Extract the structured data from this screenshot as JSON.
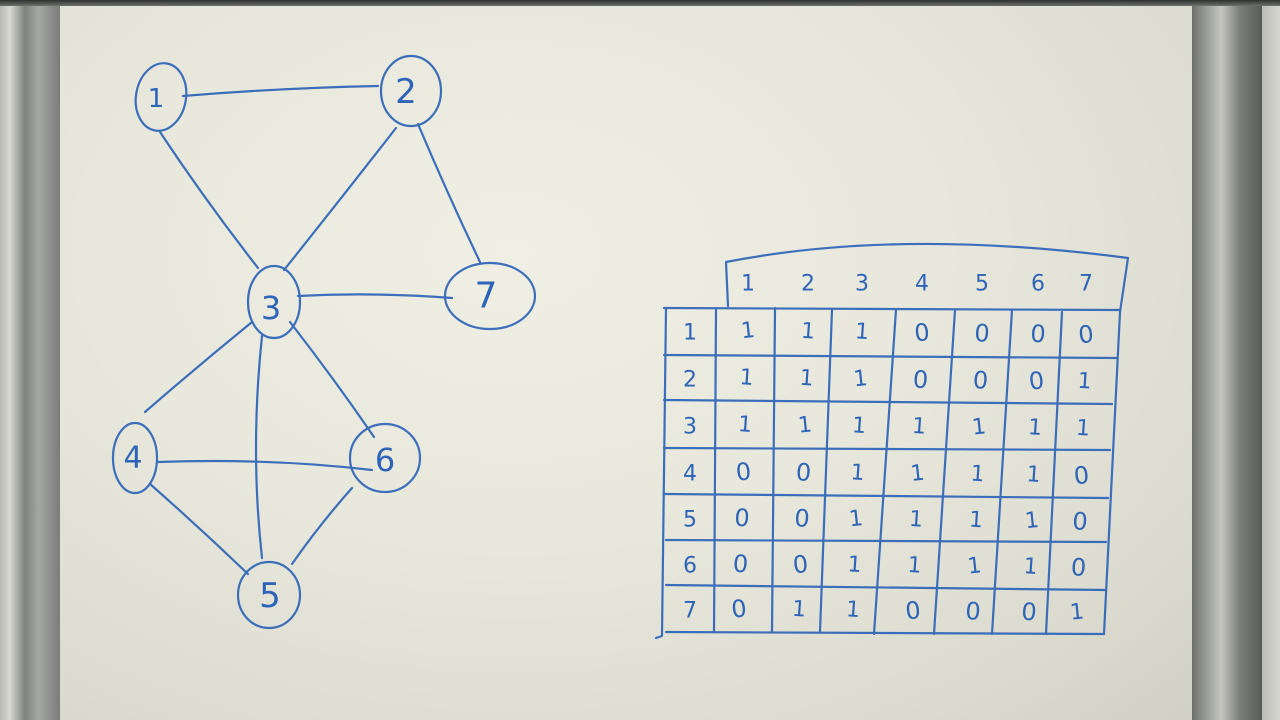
{
  "graph": {
    "nodes": [
      {
        "id": "n1",
        "label": "1"
      },
      {
        "id": "n2",
        "label": "2"
      },
      {
        "id": "n3",
        "label": "3"
      },
      {
        "id": "n4",
        "label": "4"
      },
      {
        "id": "n5",
        "label": "5"
      },
      {
        "id": "n6",
        "label": "6"
      },
      {
        "id": "n7",
        "label": "7"
      }
    ],
    "edges": [
      [
        "1",
        "2"
      ],
      [
        "1",
        "3"
      ],
      [
        "2",
        "3"
      ],
      [
        "2",
        "7"
      ],
      [
        "3",
        "7"
      ],
      [
        "3",
        "4"
      ],
      [
        "3",
        "5"
      ],
      [
        "3",
        "6"
      ],
      [
        "4",
        "6"
      ],
      [
        "4",
        "5"
      ],
      [
        "5",
        "6"
      ]
    ]
  },
  "matrix": {
    "col_headers": [
      "1",
      "2",
      "3",
      "4",
      "5",
      "6",
      "7"
    ],
    "row_headers": [
      "1",
      "2",
      "3",
      "4",
      "5",
      "6",
      "7"
    ],
    "rows": [
      [
        "1",
        "1",
        "1",
        "0",
        "0",
        "0",
        "0"
      ],
      [
        "1",
        "1",
        "1",
        "0",
        "0",
        "0",
        "1"
      ],
      [
        "1",
        "1",
        "1",
        "1",
        "1",
        "1",
        "1"
      ],
      [
        "0",
        "0",
        "1",
        "1",
        "1",
        "1",
        "0"
      ],
      [
        "0",
        "0",
        "1",
        "1",
        "1",
        "1",
        "0"
      ],
      [
        "0",
        "0",
        "1",
        "1",
        "1",
        "1",
        "0"
      ],
      [
        "0",
        "1",
        "1",
        "0",
        "0",
        "0",
        "1"
      ]
    ]
  },
  "colors": {
    "ink": "#2d64b8",
    "board": "#e8e7db",
    "frame": "#8a8c88"
  }
}
